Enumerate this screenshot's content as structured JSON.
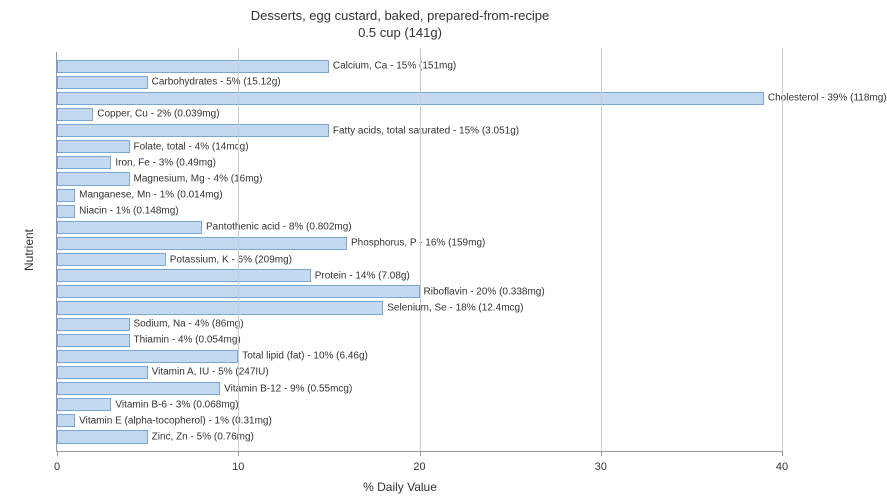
{
  "chart": {
    "type": "bar-horizontal",
    "title_line1": "Desserts, egg custard, baked, prepared-from-recipe",
    "title_line2": "0.5 cup (141g)",
    "title_fontsize": 13,
    "xlabel": "% Daily Value",
    "ylabel": "Nutrient",
    "label_fontsize": 12,
    "bar_label_fontsize": 10,
    "xlim": [
      0,
      40
    ],
    "xtick_step": 10,
    "xticks": [
      0,
      10,
      20,
      30,
      40
    ],
    "background_color": "#ffffff",
    "grid_color": "#cccccc",
    "axis_color": "#999999",
    "bar_fill": "#c3d9f0",
    "bar_border": "#7aa8d6",
    "text_color": "#333333",
    "bars": [
      {
        "label": "Calcium, Ca - 15% (151mg)",
        "value": 15
      },
      {
        "label": "Carbohydrates - 5% (15.12g)",
        "value": 5
      },
      {
        "label": "Cholesterol - 39% (118mg)",
        "value": 39
      },
      {
        "label": "Copper, Cu - 2% (0.039mg)",
        "value": 2
      },
      {
        "label": "Fatty acids, total saturated - 15% (3.051g)",
        "value": 15
      },
      {
        "label": "Folate, total - 4% (14mcg)",
        "value": 4
      },
      {
        "label": "Iron, Fe - 3% (0.49mg)",
        "value": 3
      },
      {
        "label": "Magnesium, Mg - 4% (16mg)",
        "value": 4
      },
      {
        "label": "Manganese, Mn - 1% (0.014mg)",
        "value": 1
      },
      {
        "label": "Niacin - 1% (0.148mg)",
        "value": 1
      },
      {
        "label": "Pantothenic acid - 8% (0.802mg)",
        "value": 8
      },
      {
        "label": "Phosphorus, P - 16% (159mg)",
        "value": 16
      },
      {
        "label": "Potassium, K - 6% (209mg)",
        "value": 6
      },
      {
        "label": "Protein - 14% (7.08g)",
        "value": 14
      },
      {
        "label": "Riboflavin - 20% (0.338mg)",
        "value": 20
      },
      {
        "label": "Selenium, Se - 18% (12.4mcg)",
        "value": 18
      },
      {
        "label": "Sodium, Na - 4% (86mg)",
        "value": 4
      },
      {
        "label": "Thiamin - 4% (0.054mg)",
        "value": 4
      },
      {
        "label": "Total lipid (fat) - 10% (6.46g)",
        "value": 10
      },
      {
        "label": "Vitamin A, IU - 5% (247IU)",
        "value": 5
      },
      {
        "label": "Vitamin B-12 - 9% (0.55mcg)",
        "value": 9
      },
      {
        "label": "Vitamin B-6 - 3% (0.068mg)",
        "value": 3
      },
      {
        "label": "Vitamin E (alpha-tocopherol) - 1% (0.31mg)",
        "value": 1
      },
      {
        "label": "Zinc, Zn - 5% (0.76mg)",
        "value": 5
      }
    ]
  }
}
